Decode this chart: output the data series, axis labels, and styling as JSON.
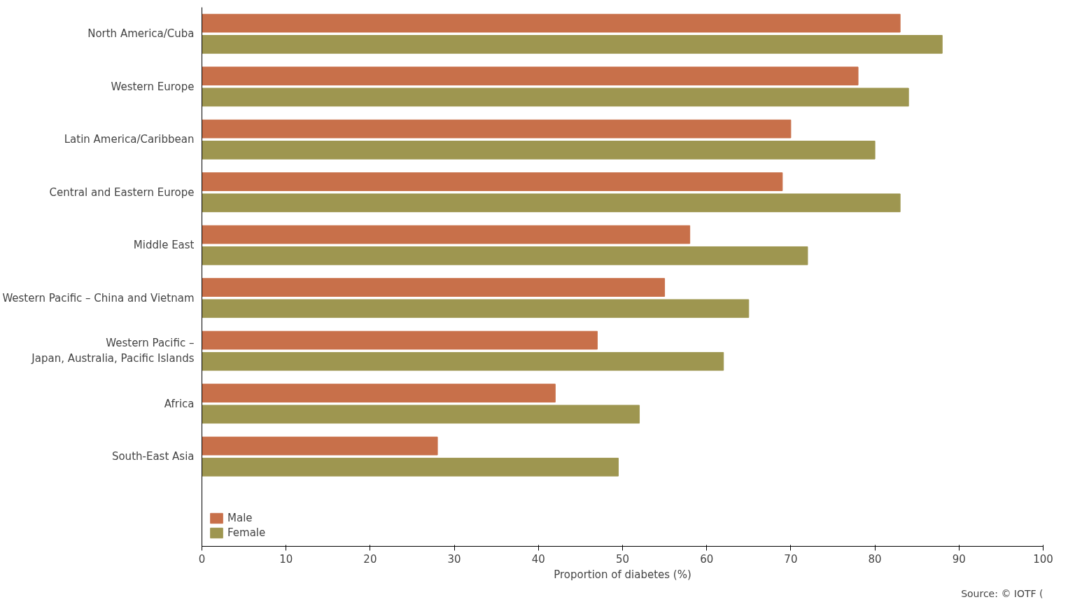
{
  "chart_data": {
    "type": "bar",
    "orientation": "horizontal",
    "categories": [
      "North America/Cuba",
      "Western Europe",
      "Latin America/Caribbean",
      "Central and Eastern Europe",
      "Middle East",
      "Western Pacific – China and Vietnam",
      "Western Pacific –\nJapan, Australia, Pacific Islands",
      "Africa",
      "South-East Asia"
    ],
    "series": [
      {
        "name": "Male",
        "color": "#c8704a",
        "values": [
          83,
          78,
          70,
          69,
          58,
          55,
          47,
          42,
          28
        ]
      },
      {
        "name": "Female",
        "color": "#9e9650",
        "values": [
          88,
          84,
          80,
          83,
          72,
          65,
          62,
          52,
          49.5
        ]
      }
    ],
    "xlabel": "Proportion of diabetes (%)",
    "xlim": [
      0,
      100
    ],
    "xticks": [
      0,
      10,
      20,
      30,
      40,
      50,
      60,
      70,
      80,
      90,
      100
    ],
    "legend": "bottom left",
    "annotations": [
      "Source: © IOTF ("
    ]
  }
}
